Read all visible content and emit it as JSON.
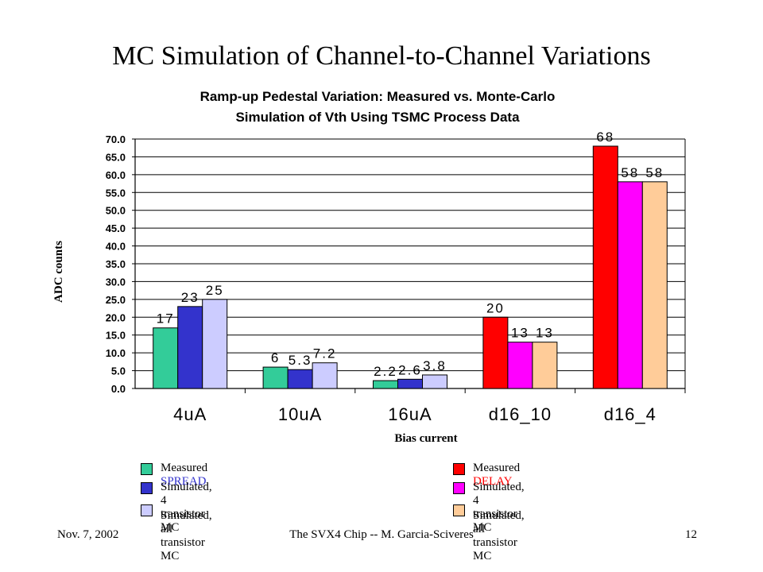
{
  "slide": {
    "title": "MC Simulation of Channel-to-Channel Variations",
    "footer_left": "Nov. 7, 2002",
    "footer_center": "The SVX4 Chip -- M. Garcia-Sciveres",
    "footer_right": "12"
  },
  "chart_data": {
    "type": "bar",
    "title_lines": [
      "Ramp-up Pedestal Variation: Measured vs. Monte-Carlo",
      "Simulation of Vth Using TSMC Process Data"
    ],
    "xlabel": "Bias current",
    "ylabel": "ADC counts",
    "ylim": [
      0,
      70
    ],
    "ytick_step": 5,
    "ytick_labels": [
      "0.0",
      "5.0",
      "10.0",
      "15.0",
      "20.0",
      "25.0",
      "30.0",
      "35.0",
      "40.0",
      "45.0",
      "50.0",
      "55.0",
      "60.0",
      "65.0",
      "70.0"
    ],
    "grid": true,
    "categories": [
      "4uA",
      "10uA",
      "16uA",
      "d16_10",
      "d16_4"
    ],
    "groups": [
      {
        "category": "4uA",
        "bars": [
          {
            "value": 17,
            "label": "17",
            "color": "#33CC99"
          },
          {
            "value": 23,
            "label": "23",
            "color": "#3333CC"
          },
          {
            "value": 25,
            "label": "25",
            "color": "#CCCCFF"
          }
        ]
      },
      {
        "category": "10uA",
        "bars": [
          {
            "value": 6,
            "label": "6",
            "color": "#33CC99"
          },
          {
            "value": 5.3,
            "label": "5.3",
            "color": "#3333CC"
          },
          {
            "value": 7.2,
            "label": "7.2",
            "color": "#CCCCFF"
          }
        ]
      },
      {
        "category": "16uA",
        "bars": [
          {
            "value": 2.2,
            "label": "2.2",
            "color": "#33CC99"
          },
          {
            "value": 2.6,
            "label": "2.6",
            "color": "#3333CC"
          },
          {
            "value": 3.8,
            "label": "3.8",
            "color": "#CCCCFF"
          }
        ]
      },
      {
        "category": "d16_10",
        "bars": [
          {
            "value": 20,
            "label": "20",
            "color": "#FF0000"
          },
          {
            "value": 13,
            "label": "13",
            "color": "#FF00FF"
          },
          {
            "value": 13,
            "label": "13",
            "color": "#FFCC99"
          }
        ]
      },
      {
        "category": "d16_4",
        "bars": [
          {
            "value": 68,
            "label": "68",
            "color": "#FF0000"
          },
          {
            "value": 58,
            "label": "58",
            "color": "#FF00FF"
          },
          {
            "value": 58,
            "label": "58",
            "color": "#FFCC99"
          }
        ]
      }
    ],
    "legend": [
      {
        "prefix": "Measured ",
        "highlight": "SPREAD",
        "highlight_color": "#3333CC",
        "color": "#33CC99"
      },
      {
        "prefix": "Simulated, 4 transistor MC",
        "highlight": "",
        "highlight_color": "",
        "color": "#3333CC"
      },
      {
        "prefix": "Simulated, all transistor MC",
        "highlight": "",
        "highlight_color": "",
        "color": "#CCCCFF"
      },
      {
        "prefix": "Measured ",
        "highlight": "DELAY",
        "highlight_color": "#FF0000",
        "color": "#FF0000"
      },
      {
        "prefix": "Simulated, 4 transistor MC",
        "highlight": "",
        "highlight_color": "",
        "color": "#FF00FF"
      },
      {
        "prefix": "Simulated, all transistor MC",
        "highlight": "",
        "highlight_color": "",
        "color": "#FFCC99"
      }
    ]
  }
}
